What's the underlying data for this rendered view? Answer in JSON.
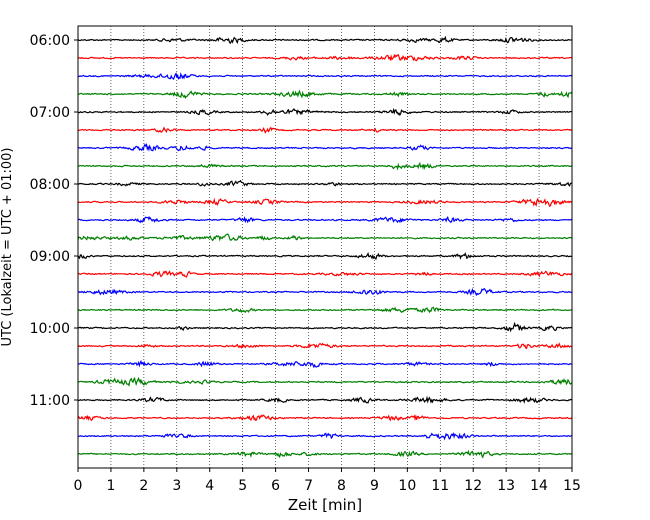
{
  "chart_data": {
    "type": "line",
    "title": "",
    "xlabel": "Zeit  [min]",
    "ylabel": "UTC (Lokalzeit = UTC + 01:00)",
    "xlim": [
      0,
      15
    ],
    "x_ticks": [
      0,
      1,
      2,
      3,
      4,
      5,
      6,
      7,
      8,
      9,
      10,
      11,
      12,
      13,
      14,
      15
    ],
    "x_tick_labels": [
      "0",
      "1",
      "2",
      "3",
      "4",
      "5",
      "6",
      "7",
      "8",
      "9",
      "10",
      "11",
      "12",
      "13",
      "14",
      "15"
    ],
    "y_tick_labels": [
      "06:00",
      "07:00",
      "08:00",
      "09:00",
      "10:00",
      "11:00"
    ],
    "grid": {
      "vertical": true,
      "style": "dotted"
    },
    "trace_colors": [
      "#000000",
      "#ff0000",
      "#0000ff",
      "#008000"
    ],
    "traces": [
      {
        "start": "06:00",
        "color": "#000000"
      },
      {
        "start": "06:15",
        "color": "#ff0000"
      },
      {
        "start": "06:30",
        "color": "#0000ff"
      },
      {
        "start": "06:45",
        "color": "#008000"
      },
      {
        "start": "07:00",
        "color": "#000000"
      },
      {
        "start": "07:15",
        "color": "#ff0000"
      },
      {
        "start": "07:30",
        "color": "#0000ff"
      },
      {
        "start": "07:45",
        "color": "#008000"
      },
      {
        "start": "08:00",
        "color": "#000000"
      },
      {
        "start": "08:15",
        "color": "#ff0000"
      },
      {
        "start": "08:30",
        "color": "#0000ff"
      },
      {
        "start": "08:45",
        "color": "#008000"
      },
      {
        "start": "09:00",
        "color": "#000000"
      },
      {
        "start": "09:15",
        "color": "#ff0000"
      },
      {
        "start": "09:30",
        "color": "#0000ff"
      },
      {
        "start": "09:45",
        "color": "#008000"
      },
      {
        "start": "10:00",
        "color": "#000000"
      },
      {
        "start": "10:15",
        "color": "#ff0000"
      },
      {
        "start": "10:30",
        "color": "#0000ff"
      },
      {
        "start": "10:45",
        "color": "#008000"
      },
      {
        "start": "11:00",
        "color": "#000000"
      },
      {
        "start": "11:15",
        "color": "#ff0000"
      },
      {
        "start": "11:30",
        "color": "#0000ff"
      },
      {
        "start": "11:45",
        "color": "#008000"
      }
    ]
  }
}
